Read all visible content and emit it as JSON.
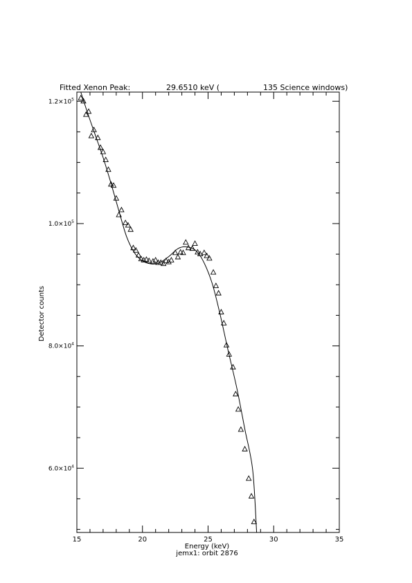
{
  "chart_data": {
    "type": "scatter",
    "title_parts": {
      "prefix": "Fitted Xenon Peak:",
      "energy": "29.6510 keV (",
      "windows": "135 Science windows)"
    },
    "xlabel": "Energy (keV)",
    "subtitle": "jemx1: orbit 2876",
    "ylabel": "Detector counts",
    "xlim": [
      15,
      35
    ],
    "ylim": [
      49500,
      121500
    ],
    "x_ticks": [
      15,
      20,
      25,
      30,
      35
    ],
    "x_tick_labels": [
      "15",
      "20",
      "25",
      "30",
      "35"
    ],
    "y_ticks": [
      60000,
      80000,
      100000,
      120000
    ],
    "y_tick_labels": [
      {
        "mant": "6.0",
        "exp": "4"
      },
      {
        "mant": "8.0",
        "exp": "4"
      },
      {
        "mant": "1.0",
        "exp": "5"
      },
      {
        "mant": "1.2",
        "exp": "5"
      }
    ],
    "marker": "triangle",
    "points": [
      [
        15.3,
        120500
      ],
      [
        15.5,
        120000
      ],
      [
        15.7,
        117800
      ],
      [
        15.9,
        118300
      ],
      [
        16.1,
        114300
      ],
      [
        16.3,
        115300
      ],
      [
        16.6,
        114000
      ],
      [
        16.8,
        112400
      ],
      [
        17.0,
        111700
      ],
      [
        17.2,
        110400
      ],
      [
        17.4,
        108800
      ],
      [
        17.6,
        106400
      ],
      [
        17.8,
        106200
      ],
      [
        18.0,
        104100
      ],
      [
        18.2,
        101400
      ],
      [
        18.4,
        102200
      ],
      [
        18.7,
        100100
      ],
      [
        18.9,
        99700
      ],
      [
        19.1,
        99000
      ],
      [
        19.3,
        96000
      ],
      [
        19.5,
        95600
      ],
      [
        19.7,
        94800
      ],
      [
        19.9,
        94200
      ],
      [
        20.1,
        94000
      ],
      [
        20.3,
        94100
      ],
      [
        20.5,
        93900
      ],
      [
        20.8,
        93800
      ],
      [
        21.0,
        94000
      ],
      [
        21.2,
        93600
      ],
      [
        21.4,
        93600
      ],
      [
        21.6,
        93400
      ],
      [
        21.8,
        93900
      ],
      [
        22.0,
        93700
      ],
      [
        22.2,
        94000
      ],
      [
        22.5,
        95200
      ],
      [
        22.7,
        94500
      ],
      [
        22.9,
        95300
      ],
      [
        23.1,
        95200
      ],
      [
        23.3,
        96900
      ],
      [
        23.5,
        96000
      ],
      [
        23.8,
        95900
      ],
      [
        24.0,
        96700
      ],
      [
        24.2,
        95300
      ],
      [
        24.4,
        95000
      ],
      [
        24.7,
        95200
      ],
      [
        24.9,
        94700
      ],
      [
        25.1,
        94300
      ],
      [
        25.4,
        92000
      ],
      [
        25.6,
        89800
      ],
      [
        25.8,
        88600
      ],
      [
        26.0,
        85500
      ],
      [
        26.2,
        83700
      ],
      [
        26.4,
        80100
      ],
      [
        26.6,
        78600
      ],
      [
        26.9,
        76500
      ],
      [
        27.1,
        72100
      ],
      [
        27.3,
        69600
      ],
      [
        27.5,
        66300
      ],
      [
        27.8,
        63100
      ],
      [
        28.1,
        58300
      ],
      [
        28.3,
        55400
      ],
      [
        28.5,
        51200
      ]
    ],
    "fit": {
      "x": [
        15.3,
        15.8,
        16.4,
        17.0,
        17.6,
        18.2,
        18.8,
        19.4,
        20.0,
        20.7,
        21.3,
        22.0,
        22.7,
        23.3,
        24.0,
        24.6,
        25.3,
        25.9,
        26.5,
        27.2,
        27.8,
        28.4,
        28.7
      ],
      "y": [
        121500,
        118200,
        114500,
        110800,
        106600,
        102100,
        97800,
        95200,
        93900,
        93400,
        93600,
        94600,
        95900,
        96200,
        95700,
        94000,
        90300,
        85300,
        79500,
        73000,
        66400,
        59700,
        49500
      ]
    }
  }
}
